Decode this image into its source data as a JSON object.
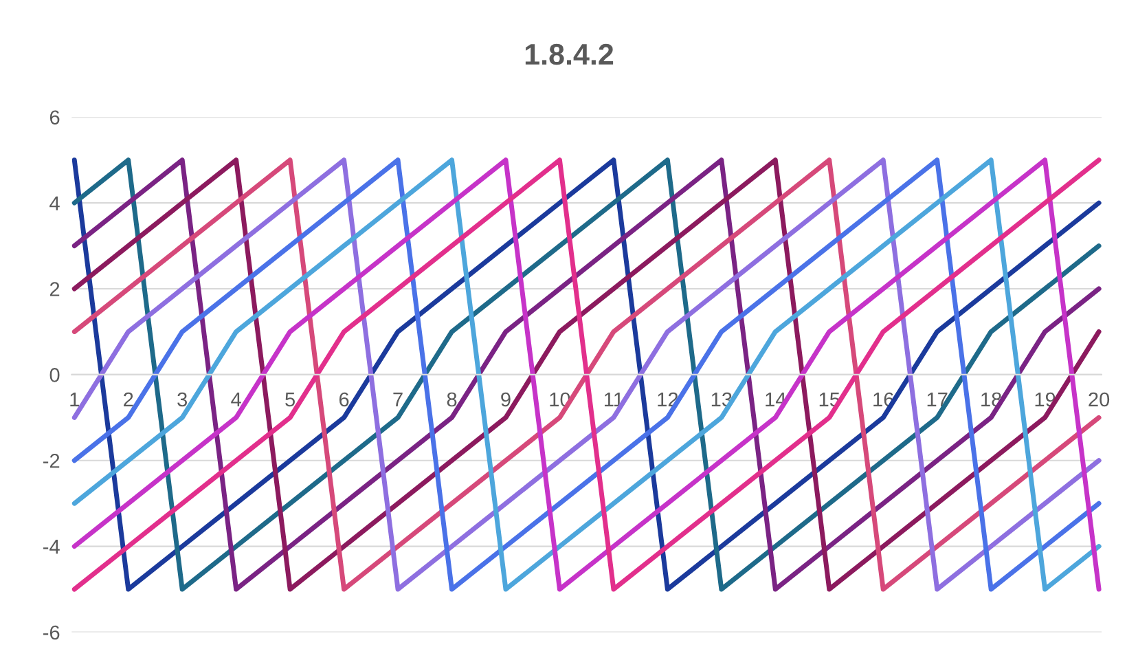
{
  "chart_data": {
    "type": "line",
    "title": "1.8.4.2",
    "categories": [
      "1",
      "2",
      "3",
      "4",
      "5",
      "6",
      "7",
      "8",
      "9",
      "10",
      "11",
      "12",
      "13",
      "14",
      "15",
      "16",
      "17",
      "18",
      "19",
      "20"
    ],
    "series": [
      {
        "color": "#1b3a9c",
        "values": [
          5,
          -5,
          -4,
          -3,
          -2,
          -1,
          1,
          2,
          3,
          4,
          5,
          -5,
          -4,
          -3,
          -2,
          -1,
          1,
          2,
          3,
          4
        ]
      },
      {
        "color": "#1e6a8a",
        "values": [
          4,
          5,
          -5,
          -4,
          -3,
          -2,
          -1,
          1,
          2,
          3,
          4,
          5,
          -5,
          -4,
          -3,
          -2,
          -1,
          1,
          2,
          3
        ]
      },
      {
        "color": "#7a2384",
        "values": [
          3,
          4,
          5,
          -5,
          -4,
          -3,
          -2,
          -1,
          1,
          2,
          3,
          4,
          5,
          -5,
          -4,
          -3,
          -2,
          -1,
          1,
          2
        ]
      },
      {
        "color": "#8c1a5e",
        "values": [
          2,
          3,
          4,
          5,
          -5,
          -4,
          -3,
          -2,
          -1,
          1,
          2,
          3,
          4,
          5,
          -5,
          -4,
          -3,
          -2,
          -1,
          1
        ]
      },
      {
        "color": "#d6497a",
        "values": [
          1,
          2,
          3,
          4,
          5,
          -5,
          -4,
          -3,
          -2,
          -1,
          1,
          2,
          3,
          4,
          5,
          -5,
          -4,
          -3,
          -2,
          -1
        ]
      },
      {
        "color": "#8e6fe0",
        "values": [
          -1,
          1,
          2,
          3,
          4,
          5,
          -5,
          -4,
          -3,
          -2,
          -1,
          1,
          2,
          3,
          4,
          5,
          -5,
          -4,
          -3,
          -2
        ]
      },
      {
        "color": "#4a72e8",
        "values": [
          -2,
          -1,
          1,
          2,
          3,
          4,
          5,
          -5,
          -4,
          -3,
          -2,
          -1,
          1,
          2,
          3,
          4,
          5,
          -5,
          -4,
          -3
        ]
      },
      {
        "color": "#4da6dc",
        "values": [
          -3,
          -2,
          -1,
          1,
          2,
          3,
          4,
          5,
          -5,
          -4,
          -3,
          -2,
          -1,
          1,
          2,
          3,
          4,
          5,
          -5,
          -4
        ]
      },
      {
        "color": "#c633c8",
        "values": [
          -4,
          -3,
          -2,
          -1,
          1,
          2,
          3,
          4,
          5,
          -5,
          -4,
          -3,
          -2,
          -1,
          1,
          2,
          3,
          4,
          5,
          -5
        ]
      },
      {
        "color": "#e22f8c",
        "values": [
          -5,
          -4,
          -3,
          -2,
          -1,
          1,
          2,
          3,
          4,
          5,
          -5,
          -4,
          -3,
          -2,
          -1,
          1,
          2,
          3,
          4,
          5
        ]
      }
    ],
    "ylim": [
      -6,
      6
    ],
    "yticks": [
      -6,
      -4,
      -2,
      0,
      2,
      4,
      6
    ],
    "grid": "y",
    "legend": false,
    "marker": "none",
    "line_style": "solid"
  }
}
